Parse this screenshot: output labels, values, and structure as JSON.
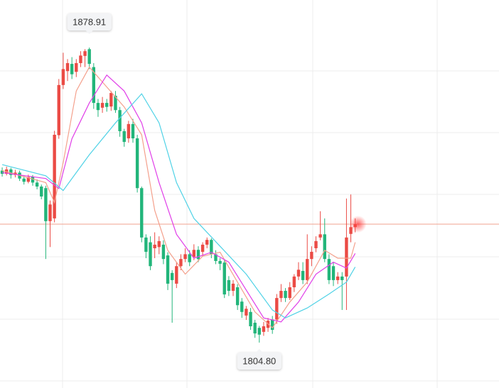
{
  "chart_data": {
    "type": "candlestick",
    "xlim": [
      -0.5,
      114
    ],
    "ylim": [
      1793.4,
      1890.85
    ],
    "up_color": "#eb4b45",
    "down_color": "#22b57a",
    "open": [
      1848.0,
      1847.2,
      1848.3,
      1846.9,
      1847.5,
      1846.0,
      1845.2,
      1846.4,
      1845.0,
      1844.0,
      1843.6,
      1835.3,
      1836.0,
      1856.9,
      1869.5,
      1873.0,
      1874.8,
      1872.8,
      1875.0,
      1876.8,
      1878.5,
      1874.0,
      1865.0,
      1863.8,
      1865.0,
      1864.1,
      1866.8,
      1863.2,
      1857.9,
      1856.1,
      1859.7,
      1856.1,
      1843.6,
      1831.2,
      1830.0,
      1828.5,
      1828.8,
      1829.4,
      1826.7,
      1822.3,
      1819.6,
      1824.0,
      1825.8,
      1827.0,
      1826.3,
      1828.1,
      1827.6,
      1829.4,
      1830.6,
      1827.0,
      1825.3,
      1824.9,
      1820.5,
      1817.8,
      1818.7,
      1815.1,
      1811.6,
      1812.5,
      1809.8,
      1808.5,
      1807.5,
      1808.5,
      1810.6,
      1810.6,
      1816.0,
      1817.8,
      1816.0,
      1818.7,
      1821.4,
      1822.8,
      1820.5,
      1825.8,
      1828.5,
      1831.2,
      1832.0,
      1825.8,
      1824.0,
      1820.5,
      1821.4,
      1821.4,
      1832.1,
      1833.8
    ],
    "close": [
      1847.2,
      1848.3,
      1846.9,
      1847.5,
      1846.0,
      1845.2,
      1846.4,
      1845.0,
      1844.0,
      1841.5,
      1835.3,
      1839.5,
      1857.0,
      1869.5,
      1873.5,
      1875.0,
      1872.2,
      1875.0,
      1876.9,
      1878.0,
      1874.8,
      1865.0,
      1863.2,
      1865.0,
      1864.0,
      1867.5,
      1863.2,
      1857.9,
      1855.2,
      1859.7,
      1856.1,
      1843.6,
      1831.2,
      1827.6,
      1824.0,
      1829.4,
      1830.3,
      1825.8,
      1819.6,
      1820.5,
      1824.0,
      1825.8,
      1827.0,
      1825.0,
      1828.1,
      1825.8,
      1829.4,
      1830.6,
      1827.0,
      1825.3,
      1824.6,
      1816.9,
      1817.8,
      1819.6,
      1814.2,
      1812.5,
      1813.3,
      1808.9,
      1807.1,
      1806.8,
      1808.9,
      1810.3,
      1808.0,
      1816.0,
      1817.8,
      1816.0,
      1818.7,
      1821.4,
      1823.1,
      1820.5,
      1825.8,
      1827.6,
      1830.3,
      1832.0,
      1825.8,
      1820.5,
      1820.5,
      1821.4,
      1820.5,
      1831.2,
      1833.8,
      1834.55
    ],
    "high": [
      1848.8,
      1849.0,
      1848.7,
      1848.2,
      1848.0,
      1846.6,
      1847.0,
      1846.9,
      1845.8,
      1844.5,
      1844.2,
      1840.5,
      1858.0,
      1871.0,
      1877.6,
      1876.0,
      1876.5,
      1876.0,
      1878.0,
      1878.5,
      1878.91,
      1875.0,
      1866.0,
      1866.5,
      1866.0,
      1868.0,
      1868.0,
      1864.0,
      1858.5,
      1860.5,
      1861.0,
      1857.0,
      1844.0,
      1832.0,
      1831.5,
      1832.5,
      1831.5,
      1830.5,
      1827.5,
      1823.0,
      1825.0,
      1827.0,
      1828.5,
      1828.0,
      1829.5,
      1829.0,
      1830.0,
      1831.2,
      1831.0,
      1828.0,
      1826.0,
      1825.5,
      1821.5,
      1820.5,
      1819.5,
      1816.0,
      1814.0,
      1813.5,
      1810.5,
      1809.0,
      1810.0,
      1811.0,
      1811.5,
      1817.0,
      1819.5,
      1818.5,
      1820.0,
      1822.0,
      1825.0,
      1825.0,
      1832.0,
      1829.0,
      1831.5,
      1837.8,
      1836.0,
      1827.0,
      1825.0,
      1822.5,
      1822.5,
      1841.0,
      1842.0,
      1836.0
    ],
    "low": [
      1846.5,
      1846.8,
      1846.0,
      1846.3,
      1845.4,
      1844.5,
      1844.8,
      1844.2,
      1843.3,
      1840.8,
      1825.8,
      1828.8,
      1835.0,
      1856.0,
      1868.5,
      1870.5,
      1871.0,
      1871.5,
      1874.0,
      1874.0,
      1873.5,
      1863.5,
      1861.5,
      1862.5,
      1862.8,
      1863.0,
      1862.5,
      1856.5,
      1854.0,
      1855.0,
      1855.0,
      1842.5,
      1830.0,
      1826.0,
      1823.0,
      1826.0,
      1827.0,
      1824.5,
      1818.0,
      1809.8,
      1818.5,
      1823.0,
      1825.0,
      1824.0,
      1825.5,
      1825.0,
      1826.5,
      1828.5,
      1826.0,
      1824.5,
      1823.0,
      1816.0,
      1816.5,
      1816.5,
      1813.0,
      1811.0,
      1810.5,
      1808.0,
      1806.0,
      1804.8,
      1806.5,
      1807.5,
      1807.0,
      1809.5,
      1815.0,
      1815.0,
      1815.5,
      1817.5,
      1820.5,
      1819.5,
      1819.5,
      1824.0,
      1827.5,
      1830.5,
      1825.0,
      1819.5,
      1819.0,
      1819.5,
      1813.0,
      1813.0,
      1830.0,
      1832.5
    ],
    "max_label": "1878.91",
    "min_label": "1804.80",
    "lines": [
      {
        "color": "#f4a08c",
        "x": [
          0,
          10,
          12,
          14,
          17,
          20,
          24,
          28,
          32,
          35,
          38,
          42,
          46,
          50,
          54,
          58,
          62,
          66,
          70,
          74,
          77,
          80,
          81
        ],
        "values": [
          1848,
          1845,
          1840,
          1850,
          1868,
          1874,
          1869,
          1864,
          1857,
          1838,
          1828,
          1822,
          1826.5,
          1827.5,
          1820,
          1812.5,
          1808.5,
          1815,
          1820,
          1828,
          1826,
          1826,
          1830
        ]
      },
      {
        "color": "#e03ee8",
        "x": [
          0,
          10,
          13,
          16,
          20,
          24,
          28,
          32,
          36,
          40,
          44,
          48,
          52,
          56,
          60,
          64,
          68,
          72,
          76,
          79,
          81
        ],
        "values": [
          1847.5,
          1846.0,
          1843.5,
          1856.0,
          1865.0,
          1872.0,
          1868.0,
          1860.0,
          1845.0,
          1832.0,
          1826.0,
          1827.5,
          1825.0,
          1818.0,
          1811.0,
          1810.0,
          1815.0,
          1822.0,
          1825.0,
          1823.5,
          1827.2
        ]
      },
      {
        "color": "#4fd2e6",
        "x": [
          0,
          10,
          14,
          20,
          26,
          32,
          36,
          40,
          44,
          50,
          56,
          62,
          65,
          70,
          75,
          79,
          81
        ],
        "values": [
          1849.5,
          1846.7,
          1843.0,
          1852.0,
          1860.0,
          1867.3,
          1860.0,
          1845.0,
          1836.0,
          1829.0,
          1822.0,
          1813.0,
          1811.0,
          1813.5,
          1817.0,
          1820.0,
          1823.8
        ]
      }
    ]
  }
}
